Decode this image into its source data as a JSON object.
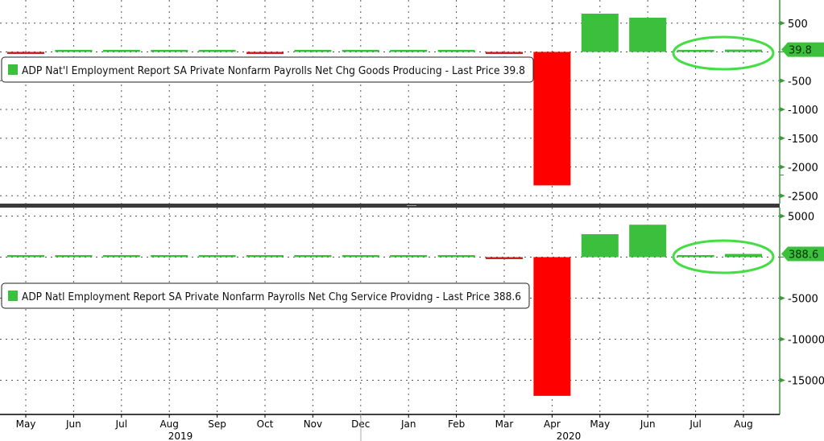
{
  "colors": {
    "positive": "#3cbf3c",
    "negative": "#ff0000",
    "negative_small": "#cc2020",
    "axis": "#3a9a3a",
    "highlight": "#44dd44"
  },
  "chart_data": [
    {
      "type": "bar",
      "legend": "ADP Nat'l Employment Report SA Private Nonfarm Payrolls Net Chg Goods Producing - Last Price 39.8",
      "last_price": "39.8",
      "categories": [
        "May",
        "Jun",
        "Jul",
        "Aug",
        "Sep",
        "Oct",
        "Nov",
        "Dec",
        "Jan",
        "Feb",
        "Mar",
        "Apr",
        "May",
        "Jun",
        "Jul",
        "Aug"
      ],
      "values": [
        -5,
        4,
        3,
        3,
        2,
        -20,
        12,
        5,
        4,
        3,
        -15,
        -2320,
        665,
        595,
        4,
        39.8
      ],
      "yticks": [
        "500",
        "-500",
        "-1000",
        "-1500",
        "-2000",
        "-2500"
      ],
      "ytick_values": [
        500,
        -500,
        -1000,
        -1500,
        -2000,
        -2500
      ],
      "ylim": [
        -2700,
        900
      ],
      "grid": true,
      "legend_position": "top-left"
    },
    {
      "type": "bar",
      "legend": "ADP Natl Employment Report SA Private Nonfarm Payrolls Net Chg Service Providng - Last Price 388.6",
      "last_price": "388.6",
      "categories": [
        "May",
        "Jun",
        "Jul",
        "Aug",
        "Sep",
        "Oct",
        "Nov",
        "Dec",
        "Jan",
        "Feb",
        "Mar",
        "Apr",
        "May",
        "Jun",
        "Jul",
        "Aug"
      ],
      "values": [
        120,
        150,
        150,
        140,
        150,
        140,
        100,
        150,
        150,
        140,
        -250,
        -16900,
        2800,
        3950,
        160,
        388.6
      ],
      "yticks": [
        "5000",
        "-5000",
        "-10000",
        "-15000"
      ],
      "ytick_values": [
        5000,
        -5000,
        -10000,
        -15000
      ],
      "ylim": [
        -19000,
        6000
      ],
      "grid": true,
      "legend_position": "top-left"
    }
  ],
  "x_axis": {
    "months": [
      "May",
      "Jun",
      "Jul",
      "Aug",
      "Sep",
      "Oct",
      "Nov",
      "Dec",
      "Jan",
      "Feb",
      "Mar",
      "Apr",
      "May",
      "Jun",
      "Jul",
      "Aug"
    ],
    "years": [
      "2019",
      "2020"
    ]
  }
}
